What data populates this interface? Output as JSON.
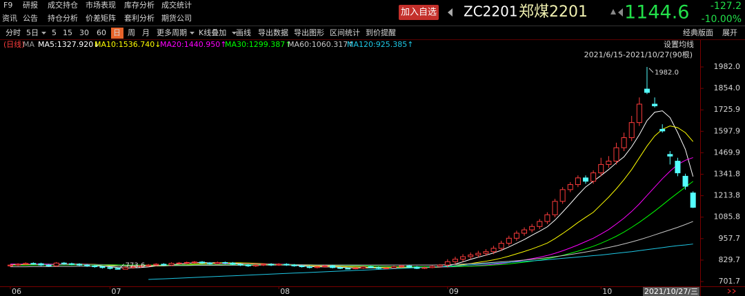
{
  "menu": {
    "row1": [
      "F9",
      "研报",
      "成交持仓",
      "市场表现",
      "库存分析",
      "成交统计"
    ],
    "row2": [
      "资讯",
      "公告",
      "持仓分析",
      "价差矩阵",
      "套利分析",
      "期货公司"
    ]
  },
  "quote": {
    "add_watch": "加入自选",
    "code": "ZC2201",
    "name": "郑煤2201",
    "price": "1144.6",
    "change": "-127.2",
    "change_pct": "-10.00%"
  },
  "toolbar": {
    "items": [
      "分时",
      "5日",
      "5",
      "15",
      "30",
      "60",
      "日",
      "周",
      "月",
      "更多周期",
      "K线叠加",
      "画线",
      "导出数据",
      "导出图形",
      "区间统计",
      "到价提醒"
    ],
    "right": [
      "经典版面",
      "展开"
    ]
  },
  "ma_bar": {
    "period": "(日线)",
    "ma": "MA",
    "labels": [
      "MA5:1327.920↓",
      "MA10:1536.740↓",
      "MA20:1440.950↑",
      "MA30:1299.387↑",
      "MA60:1060.317↑",
      "MA120:925.385↑"
    ],
    "set_ma": "设置均线",
    "range": "2021/6/15-2021/10/27(90根)"
  },
  "chart_data": {
    "type": "candlestick",
    "categories": [
      "06",
      null,
      null,
      null,
      null,
      null,
      null,
      null,
      null,
      null,
      null,
      null,
      null,
      "07",
      null,
      null,
      null,
      null,
      null,
      null,
      null,
      null,
      null,
      null,
      null,
      null,
      null,
      null,
      null,
      null,
      null,
      null,
      null,
      null,
      null,
      "08",
      null,
      null,
      null,
      null,
      null,
      null,
      null,
      null,
      null,
      null,
      null,
      null,
      null,
      null,
      null,
      null,
      null,
      null,
      null,
      null,
      null,
      "09",
      null,
      null,
      null,
      null,
      null,
      null,
      null,
      null,
      null,
      null,
      null,
      null,
      null,
      null,
      null,
      null,
      null,
      null,
      null,
      "10",
      null,
      null,
      null,
      null,
      null,
      null,
      null,
      null,
      null,
      null,
      null,
      "2021/10/27/三"
    ],
    "open": [
      795,
      800,
      805,
      810,
      808,
      800,
      795,
      812,
      808,
      805,
      800,
      795,
      790,
      785,
      780,
      775,
      785,
      790,
      795,
      800,
      805,
      800,
      810,
      812,
      815,
      818,
      812,
      808,
      815,
      812,
      805,
      800,
      795,
      800,
      805,
      800,
      805,
      800,
      795,
      790,
      785,
      790,
      795,
      785,
      780,
      778,
      782,
      790,
      785,
      780,
      782,
      790,
      795,
      788,
      780,
      785,
      792,
      800,
      820,
      835,
      850,
      860,
      870,
      880,
      900,
      930,
      960,
      990,
      1010,
      1030,
      1060,
      1100,
      1180,
      1250,
      1280,
      1320,
      1300,
      1350,
      1400,
      1420,
      1500,
      1560,
      1650,
      1850,
      1760,
      1610,
      1460,
      1420,
      1330,
      1230
    ],
    "high": [
      806,
      811,
      816,
      816,
      814,
      806,
      818,
      818,
      814,
      811,
      806,
      801,
      796,
      791,
      786,
      791,
      796,
      801,
      806,
      811,
      811,
      816,
      818,
      821,
      824,
      824,
      818,
      821,
      821,
      818,
      811,
      806,
      806,
      811,
      811,
      811,
      811,
      806,
      801,
      796,
      796,
      801,
      801,
      791,
      786,
      788,
      796,
      796,
      791,
      788,
      796,
      801,
      801,
      794,
      791,
      798,
      806,
      835,
      850,
      865,
      875,
      885,
      895,
      915,
      945,
      975,
      1005,
      1025,
      1045,
      1075,
      1115,
      1195,
      1265,
      1295,
      1335,
      1335,
      1365,
      1440,
      1450,
      1530,
      1590,
      1690,
      1800,
      1982,
      1800,
      1640,
      1480,
      1440,
      1345,
      1240
    ],
    "low": [
      789,
      794,
      799,
      802,
      794,
      789,
      789,
      802,
      799,
      794,
      789,
      784,
      779,
      774,
      773.6,
      774,
      779,
      784,
      789,
      794,
      794,
      794,
      804,
      806,
      809,
      806,
      802,
      802,
      806,
      799,
      794,
      789,
      789,
      794,
      794,
      795,
      795,
      790,
      785,
      780,
      780,
      785,
      780,
      776,
      775,
      775,
      778,
      781,
      776,
      776,
      778,
      785,
      784,
      776,
      776,
      781,
      788,
      785,
      805,
      820,
      835,
      845,
      855,
      865,
      885,
      915,
      945,
      975,
      995,
      1015,
      1045,
      1085,
      1165,
      1235,
      1265,
      1285,
      1285,
      1330,
      1380,
      1400,
      1480,
      1540,
      1630,
      1820,
      1740,
      1590,
      1400,
      1330,
      1250,
      1140
    ],
    "close": [
      800,
      805,
      810,
      808,
      800,
      795,
      812,
      808,
      805,
      800,
      795,
      790,
      785,
      780,
      775,
      785,
      790,
      795,
      800,
      805,
      800,
      810,
      812,
      815,
      818,
      812,
      808,
      815,
      812,
      805,
      800,
      795,
      800,
      805,
      800,
      805,
      800,
      795,
      790,
      785,
      790,
      795,
      785,
      780,
      778,
      782,
      790,
      785,
      780,
      782,
      790,
      795,
      788,
      780,
      785,
      792,
      800,
      820,
      835,
      850,
      860,
      870,
      880,
      900,
      930,
      960,
      990,
      1010,
      1030,
      1060,
      1100,
      1180,
      1250,
      1280,
      1320,
      1300,
      1350,
      1400,
      1420,
      1500,
      1560,
      1650,
      1760,
      1830,
      1750,
      1600,
      1450,
      1350,
      1270,
      1144.6
    ],
    "up_color": "#ff3c3c",
    "down_color": "#54ffff",
    "series": [
      {
        "name": "MA5",
        "color": "#ffffff",
        "values": [
          802,
          803,
          804,
          805,
          806,
          805,
          804,
          806,
          806,
          806,
          804,
          800,
          795,
          790,
          785,
          783,
          783,
          785,
          789,
          795,
          797,
          802,
          806,
          810,
          814,
          815,
          813,
          814,
          813,
          810,
          808,
          805,
          802,
          801,
          800,
          802,
          801,
          799,
          795,
          791,
          790,
          789,
          789,
          787,
          784,
          783,
          783,
          783,
          783,
          784,
          785,
          786,
          787,
          787,
          786,
          788,
          789,
          795,
          806,
          819,
          834,
          847,
          859,
          872,
          888,
          908,
          930,
          952,
          978,
          1002,
          1028,
          1068,
          1116,
          1166,
          1218,
          1266,
          1300,
          1334,
          1370,
          1410,
          1446,
          1506,
          1578,
          1662,
          1712,
          1720,
          1680,
          1590,
          1490,
          1327.9
        ]
      },
      {
        "name": "MA10",
        "color": "#ffff00",
        "values": [
          800,
          801,
          802,
          803,
          804,
          804,
          804,
          805,
          805,
          805,
          805,
          804,
          801,
          798,
          795,
          794,
          794,
          794,
          795,
          795,
          795,
          797,
          800,
          802,
          806,
          808,
          810,
          812,
          813,
          813,
          813,
          812,
          810,
          808,
          806,
          805,
          804,
          802,
          800,
          797,
          795,
          795,
          794,
          792,
          790,
          789,
          788,
          786,
          786,
          785,
          785,
          785,
          785,
          785,
          785,
          786,
          787,
          790,
          796,
          802,
          809,
          816,
          823,
          831,
          841,
          853,
          867,
          881,
          896,
          913,
          931,
          958,
          988,
          1020,
          1054,
          1085,
          1115,
          1160,
          1205,
          1255,
          1310,
          1370,
          1440,
          1510,
          1570,
          1610,
          1630,
          1620,
          1590,
          1536.7
        ]
      },
      {
        "name": "MA20",
        "color": "#ff00ff",
        "values": [
          806,
          806,
          805,
          805,
          805,
          804,
          804,
          804,
          804,
          804,
          804,
          803,
          803,
          802,
          801,
          800,
          799,
          798,
          798,
          798,
          798,
          798,
          799,
          800,
          801,
          802,
          803,
          804,
          805,
          806,
          806,
          806,
          806,
          806,
          805,
          805,
          804,
          803,
          802,
          801,
          800,
          799,
          798,
          797,
          796,
          795,
          794,
          793,
          792,
          791,
          790,
          789,
          788,
          788,
          788,
          788,
          788,
          789,
          790,
          792,
          794,
          797,
          800,
          804,
          809,
          815,
          822,
          830,
          838,
          847,
          857,
          870,
          885,
          902,
          920,
          940,
          960,
          985,
          1012,
          1045,
          1080,
          1120,
          1165,
          1215,
          1265,
          1315,
          1360,
          1400,
          1425,
          1441
        ]
      },
      {
        "name": "MA30",
        "color": "#00ff00",
        "values": [
          799,
          799,
          799,
          800,
          800,
          800,
          800,
          801,
          801,
          801,
          801,
          801,
          801,
          801,
          801,
          800,
          800,
          800,
          800,
          800,
          800,
          800,
          800,
          800,
          801,
          801,
          801,
          802,
          802,
          803,
          803,
          803,
          803,
          803,
          803,
          803,
          802,
          802,
          801,
          801,
          800,
          800,
          799,
          798,
          797,
          796,
          795,
          794,
          793,
          792,
          791,
          790,
          790,
          790,
          790,
          790,
          790,
          790,
          791,
          792,
          793,
          795,
          797,
          800,
          803,
          807,
          812,
          817,
          823,
          830,
          838,
          847,
          858,
          870,
          883,
          897,
          912,
          930,
          950,
          972,
          997,
          1025,
          1055,
          1088,
          1122,
          1158,
          1195,
          1230,
          1265,
          1299.4
        ]
      },
      {
        "name": "MA60",
        "color": "#c8c8c8",
        "values": [
          790,
          790,
          790,
          791,
          791,
          791,
          792,
          792,
          792,
          793,
          793,
          793,
          794,
          794,
          794,
          795,
          795,
          795,
          796,
          796,
          796,
          797,
          797,
          797,
          798,
          798,
          798,
          798,
          799,
          799,
          799,
          799,
          799,
          800,
          800,
          800,
          800,
          800,
          800,
          800,
          800,
          800,
          800,
          800,
          800,
          800,
          800,
          800,
          800,
          800,
          800,
          800,
          800,
          800,
          800,
          800,
          801,
          802,
          804,
          806,
          808,
          810,
          813,
          816,
          819,
          822,
          826,
          830,
          834,
          839,
          844,
          850,
          856,
          863,
          870,
          878,
          886,
          895,
          905,
          915,
          926,
          938,
          951,
          965,
          980,
          995,
          1010,
          1025,
          1042,
          1060.3
        ]
      },
      {
        "name": "MA120",
        "color": "#1ec8e6",
        "values": [
          null,
          null,
          null,
          null,
          null,
          null,
          null,
          null,
          null,
          null,
          null,
          null,
          null,
          null,
          null,
          null,
          null,
          null,
          714,
          716,
          718,
          720,
          722,
          724,
          726,
          728,
          730,
          732,
          734,
          736,
          738,
          740,
          742,
          744,
          746,
          748,
          750,
          752,
          754,
          756,
          758,
          760,
          762,
          764,
          766,
          768,
          770,
          772,
          774,
          776,
          778,
          780,
          782,
          784,
          786,
          788,
          790,
          792,
          795,
          798,
          801,
          804,
          807,
          810,
          813,
          816,
          819,
          822,
          825,
          828,
          832,
          836,
          840,
          844,
          848,
          852,
          856,
          860,
          865,
          870,
          875,
          880,
          886,
          892,
          898,
          904,
          910,
          916,
          920,
          925.4
        ]
      }
    ],
    "annotations": [
      {
        "label": "1982.0",
        "value": 1982,
        "field": "high"
      },
      {
        "label": "773.6",
        "value": 773.6,
        "field": "low"
      }
    ],
    "ylim": [
      673,
      2085
    ],
    "yticks": [
      701.7,
      829.7,
      957.7,
      1085.8,
      1213.8,
      1341.8,
      1469.9,
      1597.9,
      1725.9,
      {
        "value": 1854,
        "label": "1854.0"
      },
      {
        "value": 1982,
        "label": "1982.0"
      }
    ]
  }
}
